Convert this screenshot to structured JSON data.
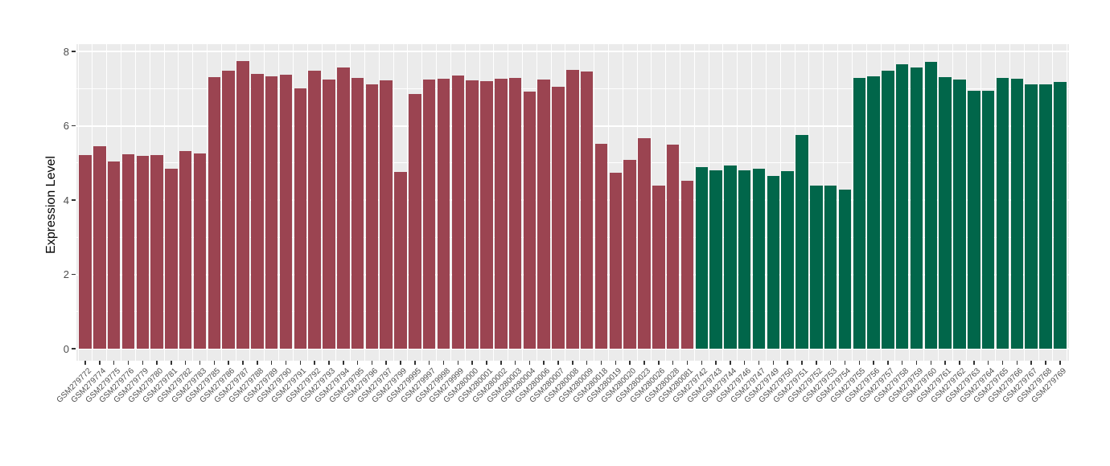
{
  "chart_data": {
    "type": "bar",
    "title": "",
    "xlabel": "",
    "ylabel": "Expression Level",
    "ylim": [
      0,
      8
    ],
    "yticks": [
      0,
      2,
      4,
      6,
      8
    ],
    "yticks_minor": [
      1,
      3,
      5,
      7
    ],
    "grid": "on",
    "legend": "none",
    "panel_background": "#EBEBEB",
    "gridline_color": "#FFFFFF",
    "categories": [
      "GSM279772",
      "GSM279774",
      "GSM279775",
      "GSM279776",
      "GSM279779",
      "GSM279780",
      "GSM279781",
      "GSM279782",
      "GSM279783",
      "GSM279785",
      "GSM279786",
      "GSM279787",
      "GSM279788",
      "GSM279789",
      "GSM279790",
      "GSM279791",
      "GSM279792",
      "GSM279793",
      "GSM279794",
      "GSM279795",
      "GSM279796",
      "GSM279797",
      "GSM279799",
      "GSM279995",
      "GSM279997",
      "GSM279998",
      "GSM279999",
      "GSM280000",
      "GSM280001",
      "GSM280002",
      "GSM280003",
      "GSM280004",
      "GSM280006",
      "GSM280007",
      "GSM280008",
      "GSM280009",
      "GSM280018",
      "GSM280019",
      "GSM280020",
      "GSM280023",
      "GSM280026",
      "GSM280028",
      "GSM280081",
      "GSM279742",
      "GSM279743",
      "GSM279744",
      "GSM279746",
      "GSM279747",
      "GSM279749",
      "GSM279750",
      "GSM279751",
      "GSM279752",
      "GSM279753",
      "GSM279754",
      "GSM279755",
      "GSM279756",
      "GSM279757",
      "GSM279758",
      "GSM279759",
      "GSM279760",
      "GSM279761",
      "GSM279762",
      "GSM279763",
      "GSM279764",
      "GSM279765",
      "GSM279766",
      "GSM279767",
      "GSM279768",
      "GSM279769"
    ],
    "values": [
      5.22,
      5.45,
      5.03,
      5.23,
      5.2,
      5.22,
      4.85,
      5.31,
      5.25,
      7.3,
      7.48,
      7.74,
      7.4,
      7.33,
      7.38,
      7.0,
      7.49,
      7.24,
      7.56,
      7.28,
      7.12,
      7.22,
      4.76,
      6.85,
      7.24,
      7.27,
      7.35,
      7.22,
      7.2,
      7.27,
      7.29,
      6.91,
      7.24,
      7.04,
      7.5,
      7.47,
      5.52,
      4.73,
      5.08,
      5.66,
      4.4,
      5.5,
      4.52,
      4.88,
      4.79,
      4.92,
      4.81,
      4.84,
      4.64,
      4.77,
      5.76,
      4.38,
      4.38,
      4.28,
      7.28,
      7.33,
      7.49,
      7.66,
      7.56,
      7.72,
      7.3,
      7.25,
      6.93,
      6.93,
      7.28,
      7.27,
      7.12,
      7.12,
      7.18
    ],
    "groups": [
      "group1",
      "group1",
      "group1",
      "group1",
      "group1",
      "group1",
      "group1",
      "group1",
      "group1",
      "group1",
      "group1",
      "group1",
      "group1",
      "group1",
      "group1",
      "group1",
      "group1",
      "group1",
      "group1",
      "group1",
      "group1",
      "group1",
      "group1",
      "group1",
      "group1",
      "group1",
      "group1",
      "group1",
      "group1",
      "group1",
      "group1",
      "group1",
      "group1",
      "group1",
      "group1",
      "group1",
      "group1",
      "group1",
      "group1",
      "group1",
      "group1",
      "group1",
      "group1",
      "group2",
      "group2",
      "group2",
      "group2",
      "group2",
      "group2",
      "group2",
      "group2",
      "group2",
      "group2",
      "group2",
      "group2",
      "group2",
      "group2",
      "group2",
      "group2",
      "group2",
      "group2",
      "group2",
      "group2",
      "group2",
      "group2",
      "group2",
      "group2",
      "group2",
      "group2"
    ],
    "group_colors": {
      "group1": "#9B4451",
      "group2": "#01664A"
    }
  }
}
